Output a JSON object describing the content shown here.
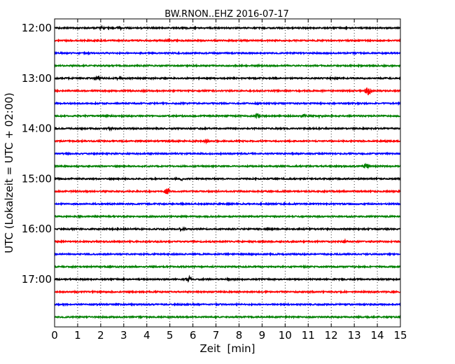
{
  "chart_data": {
    "type": "line",
    "title": "BW.RNON..EHZ 2016-07-17",
    "xlabel": "Zeit  [min]",
    "ylabel": "UTC (Lokalzeit = UTC + 02:00)",
    "xlim": [
      0,
      15
    ],
    "x_ticks": [
      0,
      1,
      2,
      3,
      4,
      5,
      6,
      7,
      8,
      9,
      10,
      11,
      12,
      13,
      14,
      15
    ],
    "x_tick_labels": [
      "0",
      "1",
      "2",
      "3",
      "4",
      "5",
      "6",
      "7",
      "8",
      "9",
      "10",
      "11",
      "12",
      "13",
      "14",
      "15"
    ],
    "y_tick_labels": [
      "12:00",
      "13:00",
      "14:00",
      "15:00",
      "16:00",
      "17:00"
    ],
    "y_tick_rows": [
      0,
      4,
      8,
      12,
      16,
      20
    ],
    "vertical_grid": "dotted",
    "trace_colors": [
      "#000000",
      "#ff0000",
      "#0000ff",
      "#008000"
    ],
    "rows": [
      {
        "start": "12:00",
        "color": "#000000",
        "events": [
          {
            "t": 2.0,
            "amp": 0.12
          },
          {
            "t": 2.8,
            "amp": 0.1
          }
        ]
      },
      {
        "start": "12:15",
        "color": "#ff0000",
        "events": [
          {
            "t": 4.9,
            "amp": 0.1
          }
        ]
      },
      {
        "start": "12:30",
        "color": "#0000ff",
        "events": []
      },
      {
        "start": "12:45",
        "color": "#008000",
        "events": []
      },
      {
        "start": "13:00",
        "color": "#000000",
        "events": [
          {
            "t": 1.9,
            "amp": 0.18
          },
          {
            "t": 2.8,
            "amp": 0.1
          }
        ]
      },
      {
        "start": "13:15",
        "color": "#ff0000",
        "events": [
          {
            "t": 13.6,
            "amp": 0.45
          }
        ]
      },
      {
        "start": "13:30",
        "color": "#0000ff",
        "events": []
      },
      {
        "start": "13:45",
        "color": "#008000",
        "events": [
          {
            "t": 8.8,
            "amp": 0.22
          },
          {
            "t": 10.8,
            "amp": 0.2
          },
          {
            "t": 11.5,
            "amp": 0.1
          }
        ]
      },
      {
        "start": "14:00",
        "color": "#000000",
        "events": [
          {
            "t": 2.4,
            "amp": 0.12
          }
        ]
      },
      {
        "start": "14:15",
        "color": "#ff0000",
        "events": [
          {
            "t": 6.6,
            "amp": 0.1
          }
        ]
      },
      {
        "start": "14:30",
        "color": "#0000ff",
        "events": []
      },
      {
        "start": "14:45",
        "color": "#008000",
        "events": [
          {
            "t": 13.5,
            "amp": 0.22
          }
        ]
      },
      {
        "start": "15:00",
        "color": "#000000",
        "events": [
          {
            "t": 5.5,
            "amp": 0.1
          }
        ]
      },
      {
        "start": "15:15",
        "color": "#ff0000",
        "events": [
          {
            "t": 4.9,
            "amp": 0.25
          }
        ]
      },
      {
        "start": "15:30",
        "color": "#0000ff",
        "events": []
      },
      {
        "start": "15:45",
        "color": "#008000",
        "events": []
      },
      {
        "start": "16:00",
        "color": "#000000",
        "events": [
          {
            "t": 5.5,
            "amp": 0.12
          }
        ]
      },
      {
        "start": "16:15",
        "color": "#ff0000",
        "events": [
          {
            "t": 12.6,
            "amp": 0.12
          }
        ]
      },
      {
        "start": "16:30",
        "color": "#0000ff",
        "events": []
      },
      {
        "start": "16:45",
        "color": "#008000",
        "events": []
      },
      {
        "start": "17:00",
        "color": "#000000",
        "events": [
          {
            "t": 5.8,
            "amp": 0.2
          },
          {
            "t": 7.5,
            "amp": 0.12
          }
        ]
      },
      {
        "start": "17:15",
        "color": "#ff0000",
        "events": []
      },
      {
        "start": "17:30",
        "color": "#0000ff",
        "events": []
      },
      {
        "start": "17:45",
        "color": "#008000",
        "events": []
      }
    ]
  }
}
